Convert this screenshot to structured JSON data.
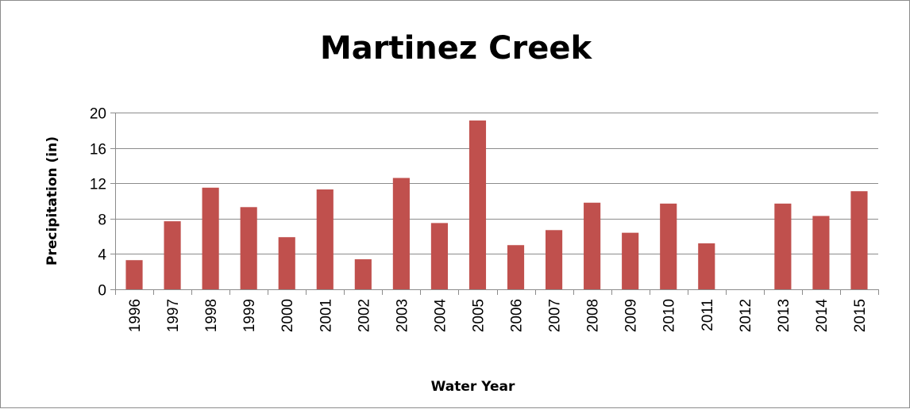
{
  "chart_data": {
    "type": "bar",
    "title": "Martinez Creek",
    "xlabel": "Water Year",
    "ylabel": "Precipitation (in)",
    "ylim": [
      0,
      20
    ],
    "yticks": [
      0,
      4,
      8,
      12,
      16,
      20
    ],
    "grid": true,
    "legend": "none",
    "bar_color": "#c0504d",
    "categories": [
      "1996",
      "1997",
      "1998",
      "1999",
      "2000",
      "2001",
      "2002",
      "2003",
      "2004",
      "2005",
      "2006",
      "2007",
      "2008",
      "2009",
      "2010",
      "2011",
      "2012",
      "2013",
      "2014",
      "2015"
    ],
    "values": [
      3.3,
      7.7,
      11.5,
      9.3,
      5.9,
      11.3,
      3.4,
      12.6,
      7.5,
      19.1,
      5.0,
      6.7,
      9.8,
      6.4,
      9.7,
      5.2,
      0,
      9.7,
      8.3,
      11.1
    ]
  }
}
